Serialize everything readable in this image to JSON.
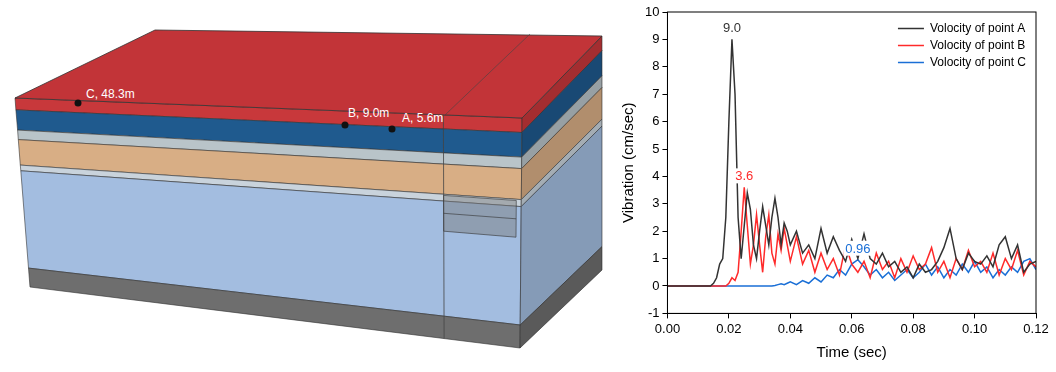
{
  "diagram": {
    "points": [
      {
        "label": "C, 48.3m"
      },
      {
        "label": "B, 9.0m"
      },
      {
        "label": "A, 5.6m"
      }
    ]
  },
  "chart_data": {
    "type": "line",
    "x_label": "Time (sec)",
    "y_label": "Vibration (cm/sec)",
    "xlim": [
      0,
      0.12
    ],
    "xticks": [
      {
        "value": 0,
        "label": "0.00"
      },
      {
        "value": 0.02,
        "label": "0.02"
      },
      {
        "value": 0.04,
        "label": "0.04"
      },
      {
        "value": 0.06,
        "label": "0.06"
      },
      {
        "value": 0.08,
        "label": "0.08"
      },
      {
        "value": 0.1,
        "label": "0.10"
      },
      {
        "value": 0.12,
        "label": "0.12"
      }
    ],
    "ylim": [
      -1,
      10
    ],
    "yticks": [
      -1,
      0,
      1,
      2,
      3,
      4,
      5,
      6,
      7,
      8,
      9,
      10
    ],
    "grid": false,
    "legend": "upper right",
    "x": [
      0,
      0.001,
      0.002,
      0.003,
      0.004,
      0.005,
      0.006,
      0.007,
      0.008,
      0.009,
      0.01,
      0.011,
      0.012,
      0.013,
      0.014,
      0.015,
      0.016,
      0.017,
      0.018,
      0.019,
      0.02,
      0.021,
      0.022,
      0.023,
      0.024,
      0.025,
      0.026,
      0.027,
      0.028,
      0.029,
      0.03,
      0.031,
      0.032,
      0.033,
      0.034,
      0.035,
      0.036,
      0.037,
      0.038,
      0.039,
      0.04,
      0.042,
      0.044,
      0.046,
      0.048,
      0.05,
      0.052,
      0.054,
      0.056,
      0.058,
      0.06,
      0.062,
      0.064,
      0.066,
      0.068,
      0.07,
      0.072,
      0.074,
      0.076,
      0.078,
      0.08,
      0.082,
      0.084,
      0.086,
      0.088,
      0.09,
      0.092,
      0.094,
      0.096,
      0.098,
      0.1,
      0.102,
      0.104,
      0.106,
      0.108,
      0.11,
      0.112,
      0.114,
      0.116,
      0.118,
      0.12
    ],
    "series": [
      {
        "name": "Volocity of point A",
        "color": "#333333",
        "values": [
          0,
          0,
          0,
          0,
          0,
          0,
          0,
          0,
          0,
          0,
          0,
          0,
          0,
          0,
          0,
          0.1,
          0.3,
          0.8,
          1.0,
          2.5,
          6.0,
          9.0,
          7.0,
          2.5,
          1.0,
          2.2,
          3.4,
          2.8,
          1.5,
          1.0,
          2.0,
          2.9,
          2.2,
          1.5,
          2.5,
          3.2,
          2.5,
          1.5,
          2.3,
          2.0,
          1.5,
          2.0,
          1.2,
          1.5,
          1.0,
          2.1,
          1.2,
          1.8,
          1.3,
          0.9,
          1.7,
          1.0,
          1.9,
          1.0,
          0.8,
          1.2,
          0.7,
          0.9,
          0.5,
          0.7,
          0.3,
          0.8,
          0.5,
          0.6,
          0.9,
          1.4,
          2.1,
          1.0,
          0.6,
          1.2,
          0.9,
          0.8,
          1.1,
          0.7,
          1.5,
          1.8,
          1.0,
          1.5,
          0.5,
          0.8,
          0.9
        ]
      },
      {
        "name": "Volocity of point B",
        "color": "#ff2a2a",
        "values": [
          0,
          0,
          0,
          0,
          0,
          0,
          0,
          0,
          0,
          0,
          0,
          0,
          0,
          0,
          0,
          0,
          0,
          0,
          0,
          0,
          0.1,
          0.3,
          0.2,
          0.5,
          2.0,
          3.6,
          2.2,
          0.8,
          1.5,
          2.6,
          1.5,
          0.5,
          1.8,
          2.6,
          1.2,
          0.8,
          1.9,
          1.3,
          2.1,
          1.5,
          0.9,
          1.8,
          0.8,
          1.3,
          0.5,
          1.2,
          0.6,
          1.0,
          0.4,
          1.5,
          0.8,
          0.5,
          0.9,
          0.3,
          1.2,
          0.6,
          0.9,
          0.3,
          1.0,
          0.5,
          1.1,
          0.6,
          0.8,
          1.4,
          0.5,
          0.9,
          0.3,
          1.0,
          0.6,
          1.3,
          0.7,
          0.9,
          0.5,
          1.2,
          0.4,
          1.0,
          0.6,
          1.3,
          0.4,
          0.9,
          0.7
        ]
      },
      {
        "name": "Volocity of point C",
        "color": "#1a6fd6",
        "values": [
          0,
          0,
          0,
          0,
          0,
          0,
          0,
          0,
          0,
          0,
          0,
          0,
          0,
          0,
          0,
          0,
          0,
          0,
          0,
          0,
          0,
          0,
          0,
          0,
          0,
          0,
          0,
          0,
          0,
          0,
          0,
          0,
          0,
          0,
          0,
          0.02,
          0.05,
          0.08,
          0.05,
          0.1,
          0.15,
          0.05,
          0.2,
          0.1,
          0.3,
          0.15,
          0.4,
          0.3,
          0.6,
          0.4,
          0.8,
          0.96,
          0.7,
          0.4,
          0.6,
          0.3,
          0.5,
          0.2,
          0.4,
          0.6,
          0.3,
          0.5,
          0.8,
          0.4,
          0.7,
          0.3,
          0.6,
          0.4,
          0.8,
          0.5,
          0.9,
          0.5,
          0.7,
          0.3,
          0.6,
          0.4,
          0.7,
          0.5,
          0.9,
          1.0,
          0.6
        ]
      }
    ],
    "annotations": [
      {
        "text": "9.0",
        "x": 0.021,
        "y": 9.0,
        "color": "#333333"
      },
      {
        "text": "3.6",
        "x": 0.025,
        "y": 3.6,
        "color": "#ff2a2a"
      },
      {
        "text": "0.96",
        "x": 0.062,
        "y": 0.96,
        "color": "#1a6fd6"
      }
    ]
  }
}
